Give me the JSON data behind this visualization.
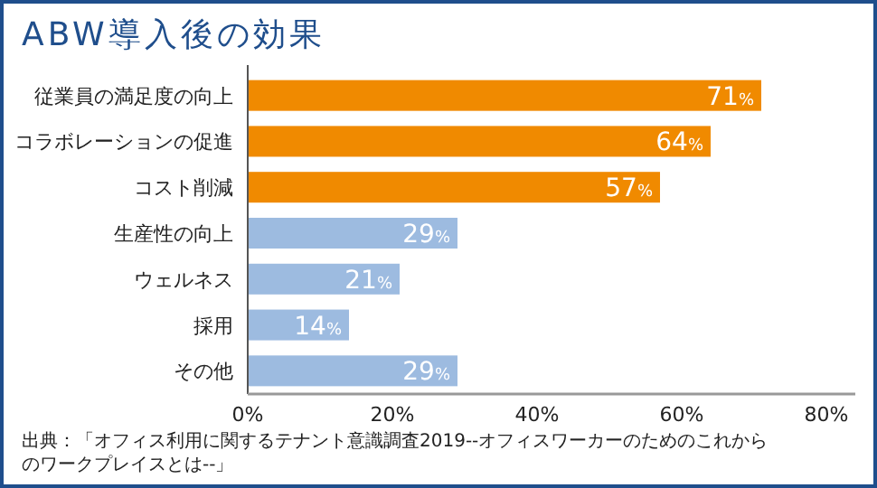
{
  "chart_data": {
    "type": "bar",
    "orientation": "horizontal",
    "title": "ABW導入後の効果",
    "categories": [
      "従業員の満足度の向上",
      "コラボレーションの促進",
      "コスト削減",
      "生産性の向上",
      "ウェルネス",
      "採用",
      "その他"
    ],
    "values": [
      71,
      64,
      57,
      29,
      21,
      14,
      29
    ],
    "colors": [
      "#f08a00",
      "#f08a00",
      "#f08a00",
      "#9dbbe0",
      "#9dbbe0",
      "#9dbbe0",
      "#9dbbe0"
    ],
    "value_labels": [
      "71%",
      "64%",
      "57%",
      "29%",
      "21%",
      "14%",
      "29%"
    ],
    "xlim": [
      0,
      84
    ],
    "xticks": [
      {
        "value": 0,
        "label": "0%"
      },
      {
        "value": 20,
        "label": "20%"
      },
      {
        "value": 40,
        "label": "40%"
      },
      {
        "value": 60,
        "label": "60%"
      },
      {
        "value": 80,
        "label": "80%"
      }
    ],
    "annotations": [
      "出典：「オフィス利用に関するテナント意識調査2019--オフィスワーカーのためのこれからのワークプレイスとは--」"
    ]
  }
}
